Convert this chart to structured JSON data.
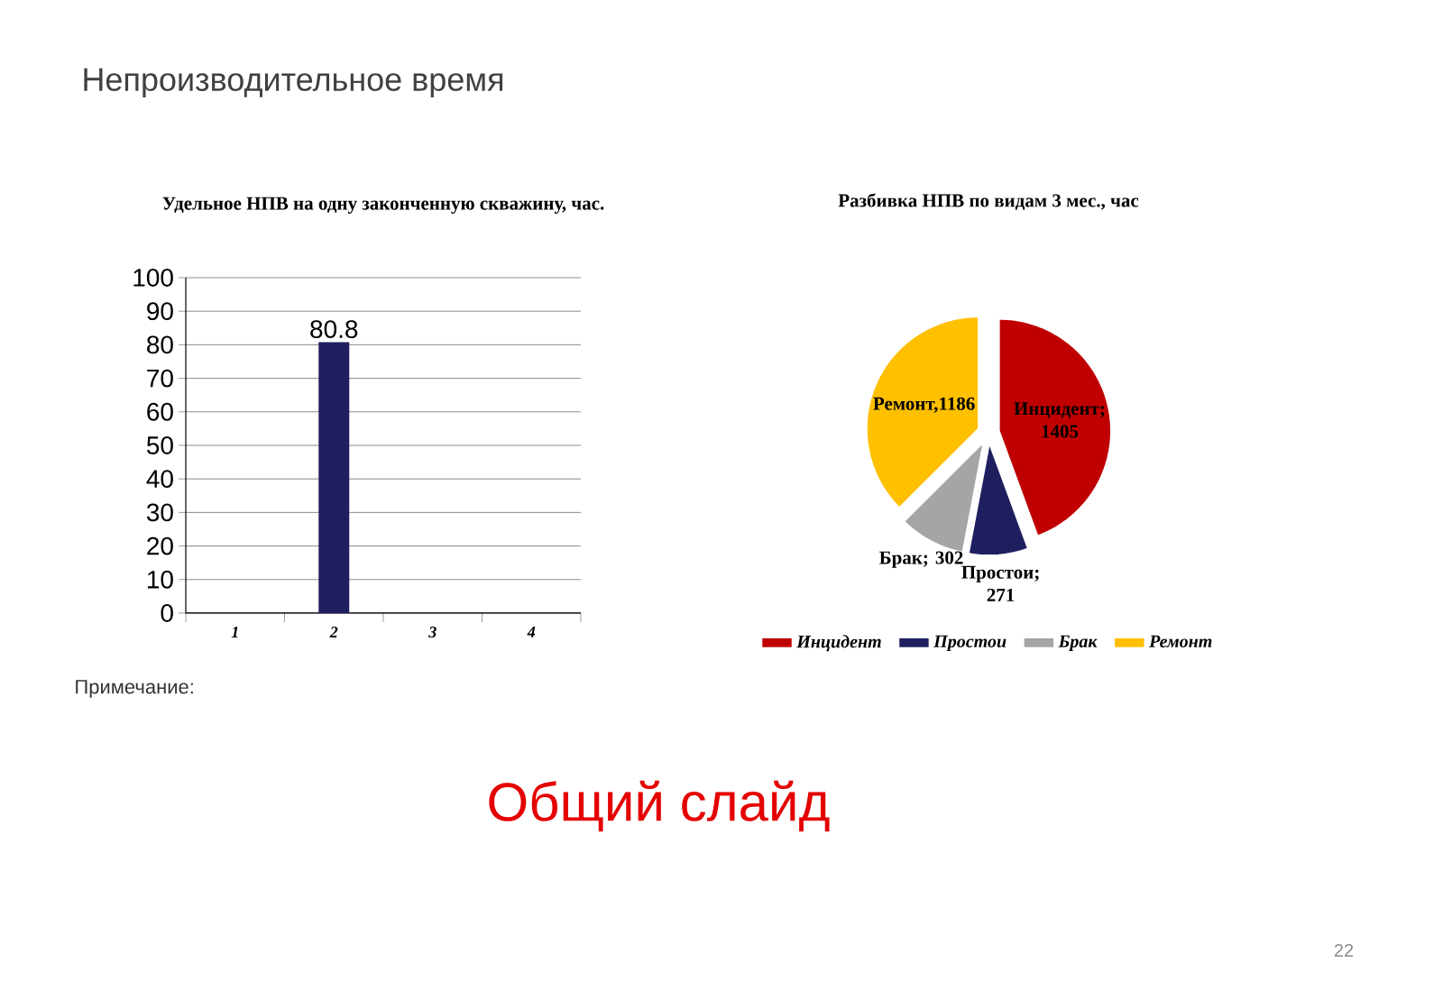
{
  "chart_data": [
    {
      "type": "bar",
      "title": "Удельное НПВ на одну законченную скважину, час.",
      "categories": [
        "1",
        "2",
        "3",
        "4"
      ],
      "values": [
        null,
        80.8,
        null,
        null
      ],
      "color": "#1f1f60",
      "ylim": [
        0,
        100
      ],
      "yticks": [
        0,
        10,
        20,
        30,
        40,
        50,
        60,
        70,
        80,
        90,
        100
      ],
      "grid": "y",
      "data_labels": true,
      "annotations": [
        "Непроизводительное время",
        "Примечание:",
        "Общий слайд",
        "22"
      ]
    },
    {
      "type": "pie",
      "title": "Разбивка НПВ по видам 3 мес., час",
      "categories": [
        "Инцидент",
        "Простои",
        "Брак",
        "Ремонт"
      ],
      "values": [
        1405,
        271,
        302,
        1186
      ],
      "colors": [
        "#c00000",
        "#1f1f60",
        "#a5a5a5",
        "#ffc000"
      ],
      "value_labels": [
        "Инцидент; 1405",
        "Простои; 271",
        "Брак; 302",
        "Ремонт,1186"
      ],
      "legend": "bottom"
    }
  ]
}
